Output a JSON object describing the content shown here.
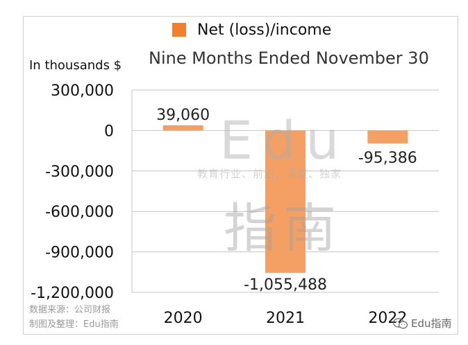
{
  "legend": {
    "label": "Net (loss)/income",
    "color": "#f07f2e"
  },
  "subtitle": "Nine Months Ended November 30",
  "unit_label": "In thousands $",
  "watermark": {
    "edu": "Edu",
    "tagline": "教育行业、前沿、深度、独家",
    "cn": "指南"
  },
  "source": {
    "line1": "数据来源：公司财报",
    "line2": "制图及整理：Edu指南"
  },
  "brand_corner": {
    "text": "Edu指南",
    "icon": "wechat-icon"
  },
  "chart_data": {
    "type": "bar",
    "categories": [
      "2020",
      "2021",
      "2022"
    ],
    "series": [
      {
        "name": "Net (loss)/income",
        "values": [
          39060,
          -1055488,
          -95386
        ],
        "color": "#f4a064"
      }
    ],
    "data_labels": [
      "39,060",
      "-1,055,488",
      "-95,386"
    ],
    "y_ticks": [
      300000,
      0,
      -300000,
      -600000,
      -900000,
      -1200000
    ],
    "y_tick_labels": [
      "300,000",
      "0",
      "-300,000",
      "-600,000",
      "-900,000",
      "-1,200,000"
    ],
    "ylim": [
      -1200000,
      300000
    ],
    "grid": true,
    "legend_position": "top"
  }
}
